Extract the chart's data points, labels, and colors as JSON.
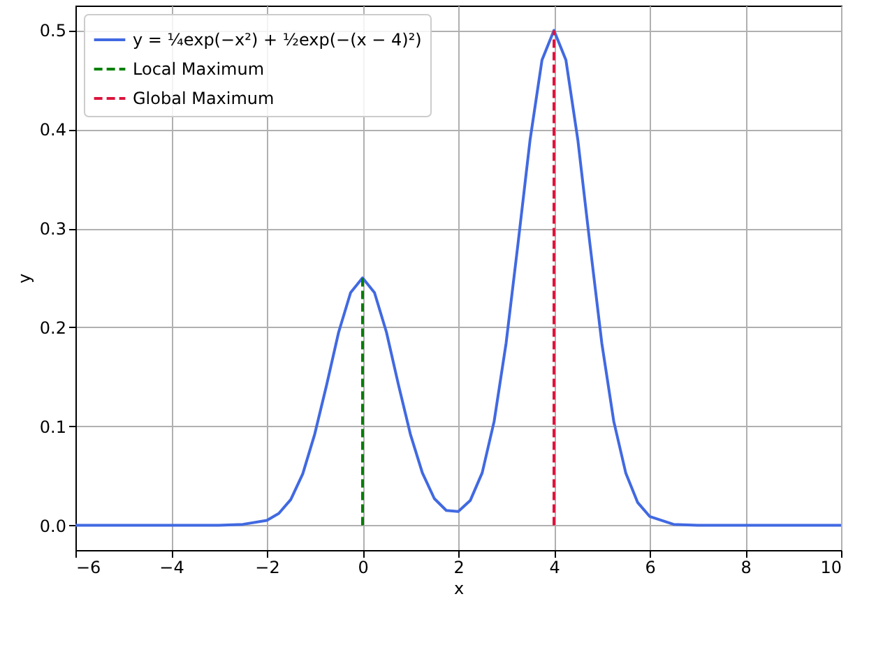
{
  "chart_data": {
    "type": "line",
    "xlabel": "x",
    "ylabel": "y",
    "xlim": [
      -6,
      10
    ],
    "xticks": [
      {
        "value": -6,
        "label": "−6"
      },
      {
        "value": -4,
        "label": "−4"
      },
      {
        "value": -2,
        "label": "−2"
      },
      0,
      2,
      4,
      6,
      8,
      10
    ],
    "ylim": [
      -0.025,
      0.525
    ],
    "yticks": [
      {
        "value": 0,
        "label": "0.0"
      },
      0.1,
      0.2,
      0.3,
      0.4,
      0.5
    ],
    "grid": true,
    "legend": "top left",
    "series": [
      {
        "name": "y = ¼exp(−x²) + ½exp(−(x − 4)²)",
        "color": "#4169e1",
        "line_style": "solid",
        "x": [
          -6,
          -4,
          -3,
          -2.5,
          -2,
          -1.75,
          -1.5,
          -1.25,
          -1,
          -0.75,
          -0.5,
          -0.25,
          0,
          0.25,
          0.5,
          0.75,
          1,
          1.25,
          1.5,
          1.75,
          2,
          2.25,
          2.5,
          2.75,
          3,
          3.25,
          3.5,
          3.75,
          4,
          4.25,
          4.5,
          4.75,
          5,
          5.25,
          5.5,
          5.75,
          6,
          6.5,
          7,
          8,
          10
        ],
        "values": [
          0,
          0,
          0,
          0.001,
          0.005,
          0.012,
          0.026,
          0.052,
          0.092,
          0.142,
          0.195,
          0.235,
          0.25,
          0.235,
          0.195,
          0.142,
          0.092,
          0.053,
          0.027,
          0.015,
          0.014,
          0.025,
          0.053,
          0.105,
          0.184,
          0.285,
          0.389,
          0.47,
          0.5,
          0.47,
          0.389,
          0.285,
          0.184,
          0.105,
          0.053,
          0.023,
          0.009,
          0.001,
          0,
          0,
          0
        ]
      },
      {
        "name": "Local Maximum",
        "color": "#008000",
        "line_style": "dashed",
        "x": [
          0,
          0
        ],
        "values": [
          0,
          0.25
        ]
      },
      {
        "name": "Global Maximum",
        "color": "#dc143c",
        "line_style": "dashed",
        "x": [
          4,
          4
        ],
        "values": [
          0,
          0.5
        ]
      }
    ]
  }
}
